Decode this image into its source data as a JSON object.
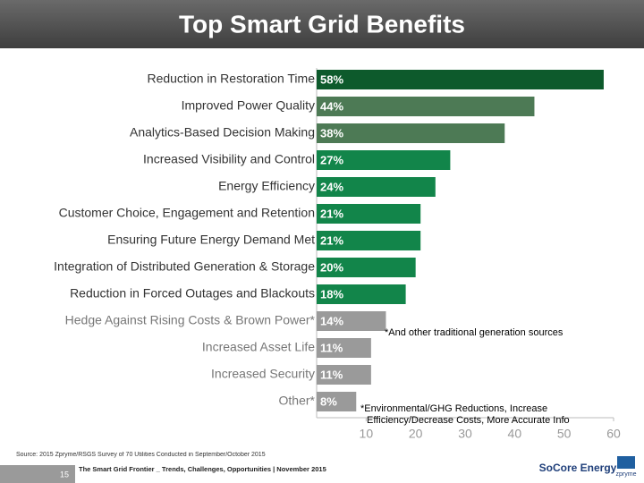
{
  "chart_data": {
    "type": "bar",
    "orientation": "horizontal",
    "title": "Top Smart Grid Benefits",
    "categories": [
      "Reduction in Restoration Time",
      "Improved Power Quality",
      "Analytics-Based Decision Making",
      "Increased Visibility and Control",
      "Energy Efficiency",
      "Customer Choice, Engagement and Retention",
      "Ensuring Future Energy Demand Met",
      "Integration of Distributed Generation & Storage",
      "Reduction in Forced Outages and Blackouts",
      "Hedge Against Rising Costs & Brown Power*",
      "Increased Asset Life",
      "Increased Security",
      "Other*"
    ],
    "values": [
      58,
      44,
      38,
      27,
      24,
      21,
      21,
      20,
      18,
      14,
      11,
      11,
      8
    ],
    "value_labels": [
      "58%",
      "44%",
      "38%",
      "27%",
      "24%",
      "21%",
      "21%",
      "20%",
      "18%",
      "14%",
      "11%",
      "11%",
      "8%"
    ],
    "colors": [
      "#0d5a2c",
      "#4d7a55",
      "#4d7a55",
      "#12854a",
      "#12854a",
      "#12854a",
      "#12854a",
      "#12854a",
      "#12854a",
      "#9a9a9a",
      "#9a9a9a",
      "#9a9a9a",
      "#9a9a9a"
    ],
    "xlim": [
      0,
      60
    ],
    "xticks": [
      10,
      20,
      30,
      40,
      50,
      60
    ],
    "annotations": [
      "*And other traditional generation sources",
      "*Environmental/GHG Reductions, Increase",
      "Efficiency/Decrease Costs, More Accurate Info"
    ]
  },
  "footer": {
    "source": "Source: 2015 Zpryme/RSGS Survey of 70 Utilities Conducted in September/October 2015",
    "page": "15",
    "doc_title": "The Smart Grid Frontier _ Trends, Challenges, Opportunities | November 2015",
    "logo1": "SoCore Energy",
    "logo2": "zpryme"
  }
}
